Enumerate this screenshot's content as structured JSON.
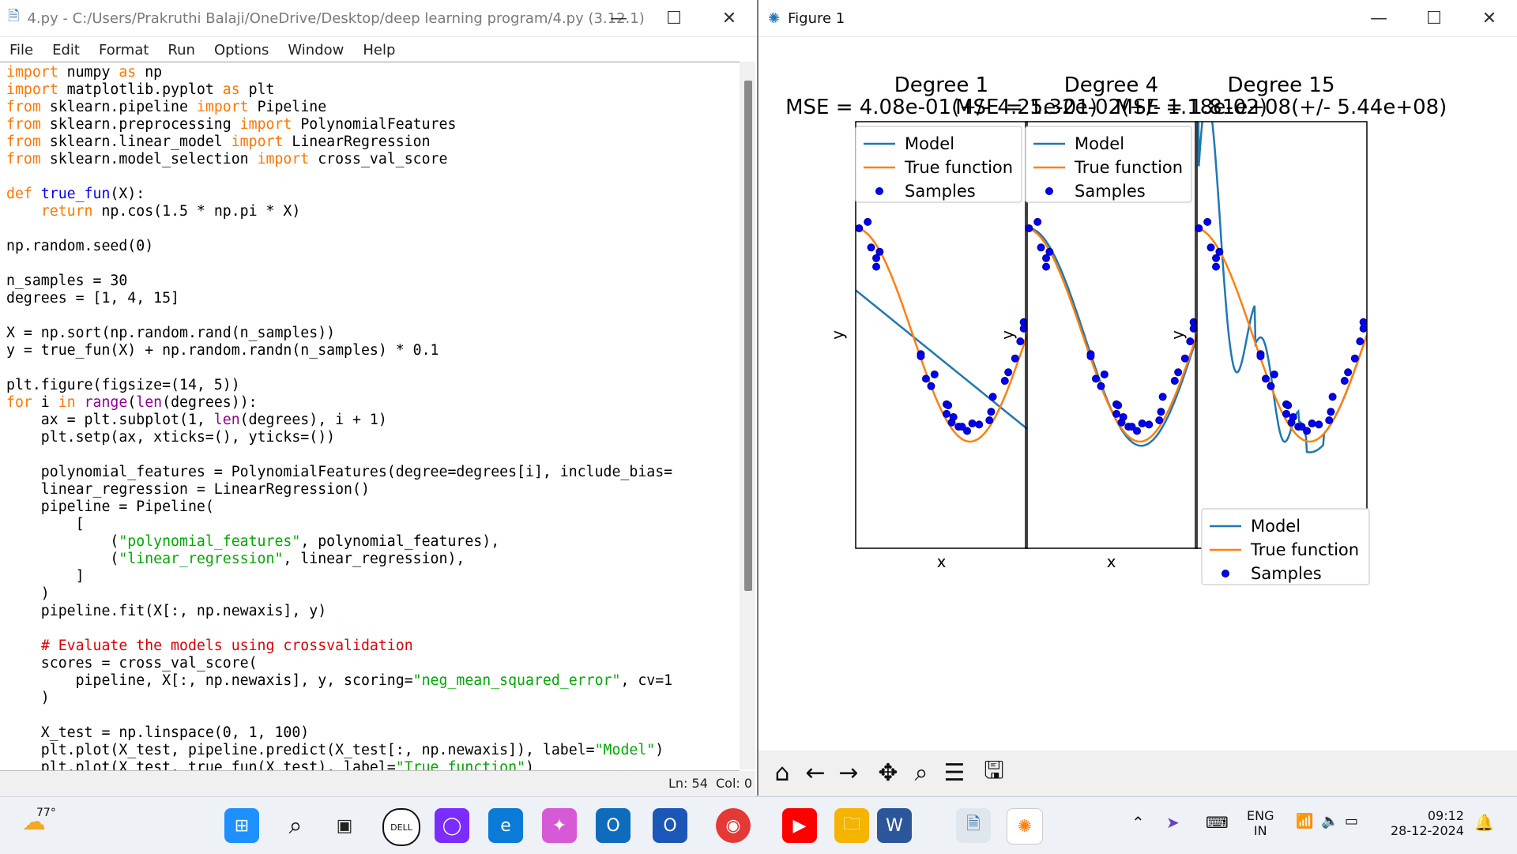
{
  "idle": {
    "title": "4.py - C:/Users/Prakruthi Balaji/OneDrive/Desktop/deep learning program/4.py (3.12.1)",
    "menu": [
      "File",
      "Edit",
      "Format",
      "Run",
      "Options",
      "Window",
      "Help"
    ],
    "status": {
      "line": "Ln: 54",
      "col": "Col: 0"
    },
    "code_lines": [
      "import numpy as np",
      "import matplotlib.pyplot as plt",
      "from sklearn.pipeline import Pipeline",
      "from sklearn.preprocessing import PolynomialFeatures",
      "from sklearn.linear_model import LinearRegression",
      "from sklearn.model_selection import cross_val_score",
      "",
      "def true_fun(X):",
      "    return np.cos(1.5 * np.pi * X)",
      "",
      "np.random.seed(0)",
      "",
      "n_samples = 30",
      "degrees = [1, 4, 15]",
      "",
      "X = np.sort(np.random.rand(n_samples))",
      "y = true_fun(X) + np.random.randn(n_samples) * 0.1",
      "",
      "plt.figure(figsize=(14, 5))",
      "for i in range(len(degrees)):",
      "    ax = plt.subplot(1, len(degrees), i + 1)",
      "    plt.setp(ax, xticks=(), yticks=())",
      "",
      "    polynomial_features = PolynomialFeatures(degree=degrees[i], include_bias=",
      "    linear_regression = LinearRegression()",
      "    pipeline = Pipeline(",
      "        [",
      "            (\"polynomial_features\", polynomial_features),",
      "            (\"linear_regression\", linear_regression),",
      "        ]",
      "    )",
      "    pipeline.fit(X[:, np.newaxis], y)",
      "",
      "    # Evaluate the models using crossvalidation",
      "    scores = cross_val_score(",
      "        pipeline, X[:, np.newaxis], y, scoring=\"neg_mean_squared_error\", cv=1",
      "    )",
      "",
      "    X_test = np.linspace(0, 1, 100)",
      "    plt.plot(X_test, pipeline.predict(X_test[:, np.newaxis]), label=\"Model\")",
      "    plt.plot(X_test, true_fun(X_test), label=\"True function\")"
    ]
  },
  "figure": {
    "title": "Figure 1",
    "subplots": [
      {
        "title": "Degree 1",
        "mse": "MSE = 4.08e-01(+/- 4.25e-01)"
      },
      {
        "title": "Degree 4",
        "mse": "MSE = 1.32e-02(+/- 1.18e-02)"
      },
      {
        "title": "Degree 15",
        "mse": "MSE = 1.81e+08(+/- 5.44e+08)"
      }
    ],
    "xlabel": "x",
    "ylabel": "y",
    "legend": [
      "Model",
      "True function",
      "Samples"
    ],
    "colors": {
      "model": "#1f77b4",
      "true_function": "#ff7f0e",
      "samples": "#0000ff"
    }
  },
  "chart_data": {
    "type": "line",
    "xlabel": "x",
    "ylabel": "y",
    "xlim": [
      0,
      1
    ],
    "ylim": [
      -2,
      2
    ],
    "samples_x": [
      0.02,
      0.07,
      0.09,
      0.12,
      0.12,
      0.14,
      0.38,
      0.38,
      0.41,
      0.44,
      0.46,
      0.53,
      0.53,
      0.54,
      0.56,
      0.57,
      0.6,
      0.62,
      0.65,
      0.68,
      0.72,
      0.78,
      0.79,
      0.8,
      0.87,
      0.89,
      0.93,
      0.96,
      0.98,
      0.98
    ],
    "samples_y": [
      1.0,
      1.06,
      0.82,
      0.72,
      0.64,
      0.78,
      -0.18,
      -0.2,
      -0.41,
      -0.48,
      -0.37,
      -0.65,
      -0.74,
      -0.66,
      -0.82,
      -0.77,
      -0.86,
      -0.86,
      -0.9,
      -0.83,
      -0.84,
      -0.8,
      -0.72,
      -0.58,
      -0.43,
      -0.35,
      -0.22,
      -0.06,
      0.06,
      0.12
    ],
    "series": [
      {
        "name": "Model (Degree 1)",
        "x": [
          0,
          1
        ],
        "y": [
          0.42,
          -0.88
        ]
      },
      {
        "name": "True function",
        "function": "cos(1.5*pi*x)"
      }
    ]
  },
  "taskbar": {
    "weather": "77°",
    "language": "ENG",
    "region": "IN",
    "time": "09:12",
    "date": "28-12-2024"
  }
}
